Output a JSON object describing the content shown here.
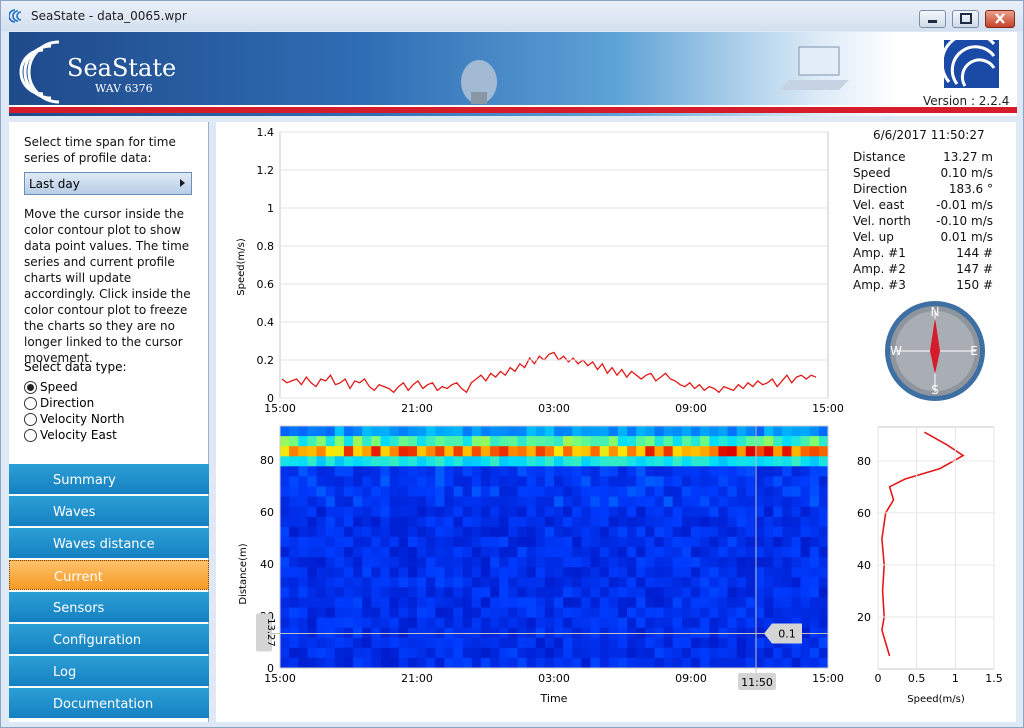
{
  "window": {
    "title": "SeaState - data_0065.wpr"
  },
  "banner": {
    "logo": "SeaState",
    "model": "WAV 6376",
    "version": "Version : 2.2.4"
  },
  "sidebar": {
    "timespan_prompt": "Select time span for time series of profile data:",
    "timespan_value": "Last day",
    "help": "Move the cursor inside the color contour plot to show data point values. The time series and current profile charts will update accordingly. Click inside the color contour plot to freeze the charts so they are no longer linked to the cursor movement.",
    "datatype_prompt": "Select data type:",
    "datatypes": [
      "Speed",
      "Direction",
      "Velocity North",
      "Velocity East"
    ],
    "selected": "Speed"
  },
  "nav": [
    "Summary",
    "Waves",
    "Waves distance",
    "Current",
    "Sensors",
    "Configuration",
    "Log",
    "Documentation"
  ],
  "nav_active": "Current",
  "readout": {
    "datetime": "6/6/2017 11:50:27",
    "rows": [
      {
        "k": "Distance",
        "v": "13.27 m"
      },
      {
        "k": "Speed",
        "v": "0.10 m/s"
      },
      {
        "k": "Direction",
        "v": "183.6 °"
      },
      {
        "k": "Vel. east",
        "v": "-0.01 m/s"
      },
      {
        "k": "Vel. north",
        "v": "-0.10 m/s"
      },
      {
        "k": "Vel. up",
        "v": "0.01 m/s"
      },
      {
        "k": "Amp. #1",
        "v": "144 #"
      },
      {
        "k": "Amp. #2",
        "v": "147 #"
      },
      {
        "k": "Amp. #3",
        "v": "150 #"
      }
    ]
  },
  "compass": {
    "n": "N",
    "s": "S",
    "e": "E",
    "w": "W"
  },
  "colors": {
    "accent": "#d51c2a",
    "nav": "#1a8dcb",
    "nav_active": "#f7a93a"
  },
  "chart_data": [
    {
      "type": "line",
      "ylabel": "Speed(m/s)",
      "ylim": [
        0,
        1.4
      ],
      "yticks": [
        "0",
        "0.2",
        "0.4",
        "0.6",
        "0.8",
        "1",
        "1.2",
        "1.4"
      ],
      "xticks": [
        "15:00",
        "21:00",
        "03:00",
        "09:00",
        "15:00"
      ],
      "values": [
        0.1,
        0.08,
        0.09,
        0.1,
        0.07,
        0.11,
        0.08,
        0.06,
        0.1,
        0.09,
        0.12,
        0.07,
        0.08,
        0.1,
        0.05,
        0.09,
        0.08,
        0.1,
        0.06,
        0.04,
        0.07,
        0.06,
        0.05,
        0.03,
        0.06,
        0.08,
        0.04,
        0.07,
        0.09,
        0.05,
        0.07,
        0.08,
        0.04,
        0.06,
        0.05,
        0.07,
        0.08,
        0.05,
        0.03,
        0.08,
        0.1,
        0.12,
        0.09,
        0.13,
        0.11,
        0.14,
        0.12,
        0.16,
        0.14,
        0.18,
        0.16,
        0.21,
        0.18,
        0.22,
        0.2,
        0.23,
        0.24,
        0.2,
        0.22,
        0.19,
        0.21,
        0.18,
        0.2,
        0.17,
        0.19,
        0.15,
        0.18,
        0.13,
        0.16,
        0.12,
        0.15,
        0.11,
        0.14,
        0.12,
        0.1,
        0.12,
        0.13,
        0.09,
        0.11,
        0.13,
        0.1,
        0.09,
        0.07,
        0.06,
        0.08,
        0.05,
        0.07,
        0.04,
        0.06,
        0.05,
        0.03,
        0.06,
        0.05,
        0.04,
        0.07,
        0.05,
        0.08,
        0.06,
        0.09,
        0.07,
        0.08,
        0.1,
        0.06,
        0.09,
        0.12,
        0.08,
        0.11,
        0.12,
        0.1,
        0.12,
        0.11
      ]
    },
    {
      "type": "heatmap",
      "ylabel": "Distance(m)",
      "xlabel": "Time",
      "ylim": [
        0,
        93
      ],
      "yticks": [
        "0",
        "20",
        "40",
        "60",
        "80"
      ],
      "xticks": [
        "15:00",
        "21:00",
        "03:00",
        "09:00",
        "15:00"
      ],
      "cursor_time": "11:50",
      "cursor_distance": "13.27",
      "cursor_value": "0.1"
    },
    {
      "type": "line",
      "xlabel": "Speed(m/s)",
      "xlim": [
        0,
        1.5
      ],
      "xticks": [
        "0",
        "0.5",
        "1",
        "1.5"
      ],
      "yticks": [
        "20",
        "40",
        "60",
        "80"
      ],
      "profile": [
        [
          0.15,
          5
        ],
        [
          0.1,
          10
        ],
        [
          0.05,
          15
        ],
        [
          0.08,
          20
        ],
        [
          0.06,
          30
        ],
        [
          0.08,
          40
        ],
        [
          0.05,
          50
        ],
        [
          0.1,
          60
        ],
        [
          0.2,
          65
        ],
        [
          0.15,
          70
        ],
        [
          0.35,
          73
        ],
        [
          0.8,
          77
        ],
        [
          1.1,
          82
        ],
        [
          0.9,
          86
        ],
        [
          0.6,
          91
        ]
      ]
    }
  ]
}
